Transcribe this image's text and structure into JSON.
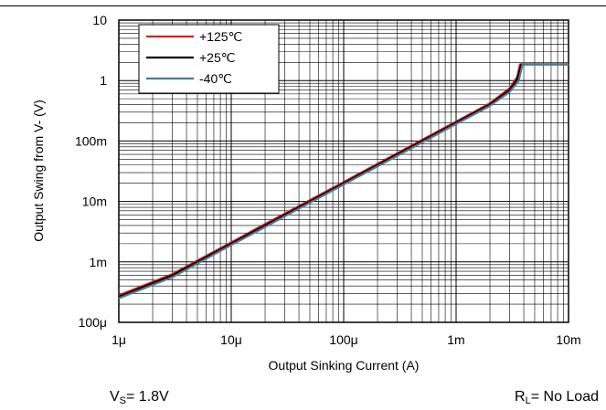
{
  "chart_data": {
    "type": "line",
    "title": "",
    "xlabel": "Output Sinking Current (A)",
    "ylabel": "Output Swing from V- (V)",
    "xscale": "log",
    "yscale": "log",
    "xlim": [
      1e-06,
      0.01
    ],
    "ylim": [
      0.0001,
      10
    ],
    "grid": true,
    "legend_position": "top-left",
    "x_tick_labels": [
      {
        "value": 1e-06,
        "label": "1μ"
      },
      {
        "value": 1e-05,
        "label": "10μ"
      },
      {
        "value": 0.0001,
        "label": "100μ"
      },
      {
        "value": 0.001,
        "label": "1m"
      },
      {
        "value": 0.01,
        "label": "10m"
      }
    ],
    "y_tick_labels": [
      {
        "value": 0.0001,
        "label": "100μ"
      },
      {
        "value": 0.001,
        "label": "1m"
      },
      {
        "value": 0.01,
        "label": "10m"
      },
      {
        "value": 0.1,
        "label": "100m"
      },
      {
        "value": 1,
        "label": "1"
      },
      {
        "value": 10,
        "label": "10"
      }
    ],
    "series": [
      {
        "name": "+125℃",
        "color": "#e8141b",
        "x": [
          1e-06,
          3e-06,
          5e-06,
          1e-05,
          1.7e-05,
          3e-05,
          0.0001,
          0.0003,
          0.001,
          0.002,
          0.003,
          0.0035,
          0.0037,
          0.01
        ],
        "y": [
          0.00028,
          0.00063,
          0.00105,
          0.0021,
          0.0036,
          0.0063,
          0.021,
          0.063,
          0.21,
          0.42,
          0.75,
          1.15,
          1.85,
          1.85
        ]
      },
      {
        "name": "+25℃",
        "color": "#000000",
        "x": [
          1e-06,
          3e-06,
          5e-06,
          1e-05,
          1.7e-05,
          3e-05,
          0.0001,
          0.0003,
          0.001,
          0.002,
          0.003,
          0.0035,
          0.0038,
          0.01
        ],
        "y": [
          0.000265,
          0.0006,
          0.001,
          0.002,
          0.0034,
          0.006,
          0.02,
          0.06,
          0.2,
          0.4,
          0.7,
          1.05,
          1.85,
          1.85
        ]
      },
      {
        "name": "-40℃",
        "color": "#4a7d96",
        "x": [
          1e-06,
          3e-06,
          5e-06,
          1e-05,
          1.7e-05,
          3e-05,
          0.0001,
          0.0003,
          0.001,
          0.002,
          0.003,
          0.0036,
          0.0039,
          0.01
        ],
        "y": [
          0.00025,
          0.00056,
          0.00094,
          0.0019,
          0.0032,
          0.0057,
          0.019,
          0.057,
          0.19,
          0.38,
          0.65,
          0.98,
          1.85,
          1.85
        ]
      }
    ]
  },
  "notes": {
    "left_main": "V",
    "left_sub": "S",
    "left_rest": "= 1.8V",
    "right_main": "R",
    "right_sub": "L",
    "right_rest": "= No Load"
  }
}
